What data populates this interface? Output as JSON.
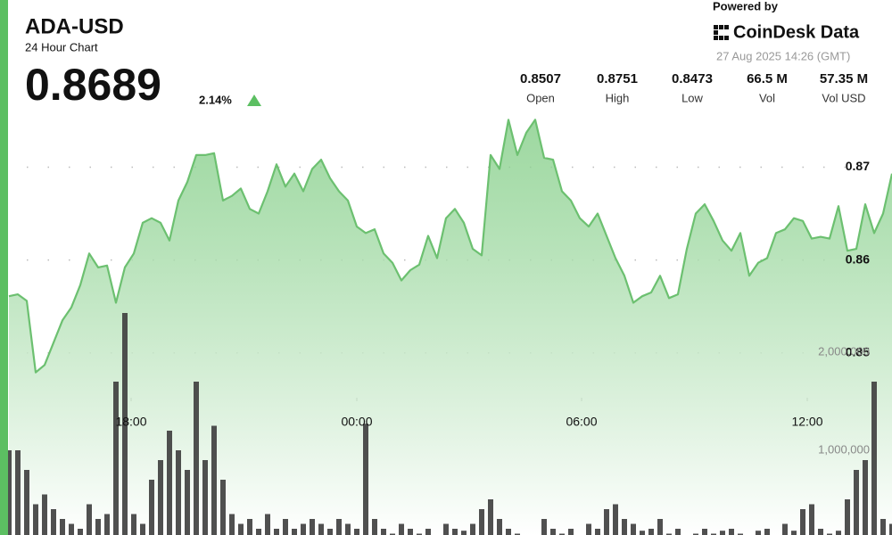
{
  "header": {
    "title": "ADA-USD",
    "subtitle": "24 Hour Chart",
    "price": "0.8689",
    "change": "2.14%",
    "powered_by": "Powered by",
    "brand": "CoinDesk Data",
    "timestamp": "27 Aug 2025 14:26 (GMT)"
  },
  "stats": [
    {
      "value": "0.8507",
      "label": "Open"
    },
    {
      "value": "0.8751",
      "label": "High"
    },
    {
      "value": "0.8473",
      "label": "Low"
    },
    {
      "value": "66.5 M",
      "label": "Vol"
    },
    {
      "value": "57.35 M",
      "label": "Vol USD"
    }
  ],
  "chart_data": [
    {
      "type": "line",
      "color": "#6cc070",
      "values": [
        0.8561,
        0.8563,
        0.8556,
        0.8479,
        0.8487,
        0.8511,
        0.8535,
        0.8549,
        0.8573,
        0.8607,
        0.8592,
        0.8594,
        0.8554,
        0.8592,
        0.8607,
        0.864,
        0.8645,
        0.864,
        0.8621,
        0.8664,
        0.8684,
        0.8713,
        0.8713,
        0.8715,
        0.8664,
        0.8669,
        0.8677,
        0.8655,
        0.865,
        0.8674,
        0.8703,
        0.8679,
        0.8693,
        0.8674,
        0.8698,
        0.8708,
        0.8688,
        0.8674,
        0.8664,
        0.8636,
        0.8629,
        0.8633,
        0.8607,
        0.8597,
        0.8578,
        0.8589,
        0.8595,
        0.8626,
        0.8602,
        0.8645,
        0.8655,
        0.864,
        0.8612,
        0.8605,
        0.8713,
        0.8698,
        0.8751,
        0.8713,
        0.8737,
        0.8751,
        0.871,
        0.8708,
        0.8674,
        0.8664,
        0.8645,
        0.8636,
        0.865,
        0.8626,
        0.8602,
        0.8583,
        0.8554,
        0.8561,
        0.8565,
        0.8583,
        0.8559,
        0.8563,
        0.8612,
        0.865,
        0.866,
        0.8642,
        0.8621,
        0.861,
        0.8629,
        0.8583,
        0.8597,
        0.8602,
        0.8629,
        0.8633,
        0.8645,
        0.8642,
        0.8623,
        0.8625,
        0.8623,
        0.8658,
        0.861,
        0.8612,
        0.866,
        0.8629,
        0.865,
        0.8693
      ],
      "ylim": [
        0.83,
        0.888
      ],
      "yticks": [
        0.85,
        0.86,
        0.87
      ],
      "grid": true,
      "xlim": [
        0,
        99
      ],
      "xticks": [
        {
          "value": 13.7,
          "label": "18:00"
        },
        {
          "value": 39,
          "label": "00:00"
        },
        {
          "value": 64.2,
          "label": "06:00"
        },
        {
          "value": 89.5,
          "label": "12:00"
        }
      ]
    },
    {
      "type": "bar",
      "color": "#3d3d3d",
      "values": [
        1000000,
        1000000,
        800000,
        450000,
        550000,
        400000,
        300000,
        250000,
        200000,
        450000,
        300000,
        350000,
        1700000,
        2400000,
        350000,
        250000,
        700000,
        900000,
        1200000,
        1000000,
        800000,
        1700000,
        900000,
        1250000,
        700000,
        350000,
        250000,
        300000,
        200000,
        350000,
        200000,
        300000,
        200000,
        250000,
        300000,
        250000,
        200000,
        300000,
        250000,
        200000,
        1270000,
        300000,
        200000,
        150000,
        250000,
        200000,
        150000,
        200000,
        100000,
        250000,
        200000,
        180000,
        250000,
        400000,
        500000,
        300000,
        200000,
        150000,
        100000,
        120000,
        300000,
        200000,
        150000,
        200000,
        120000,
        250000,
        200000,
        400000,
        450000,
        300000,
        250000,
        180000,
        200000,
        300000,
        150000,
        200000,
        120000,
        150000,
        200000,
        150000,
        180000,
        200000,
        150000,
        120000,
        180000,
        200000,
        120000,
        250000,
        180000,
        400000,
        450000,
        200000,
        150000,
        180000,
        500000,
        800000,
        900000,
        1700000,
        300000,
        250000
      ],
      "ylim": [
        0,
        5500000
      ],
      "yticks": [
        {
          "value": 1000000,
          "label": "1,000,000"
        },
        {
          "value": 2000000,
          "label": "2,000,000"
        }
      ]
    }
  ]
}
